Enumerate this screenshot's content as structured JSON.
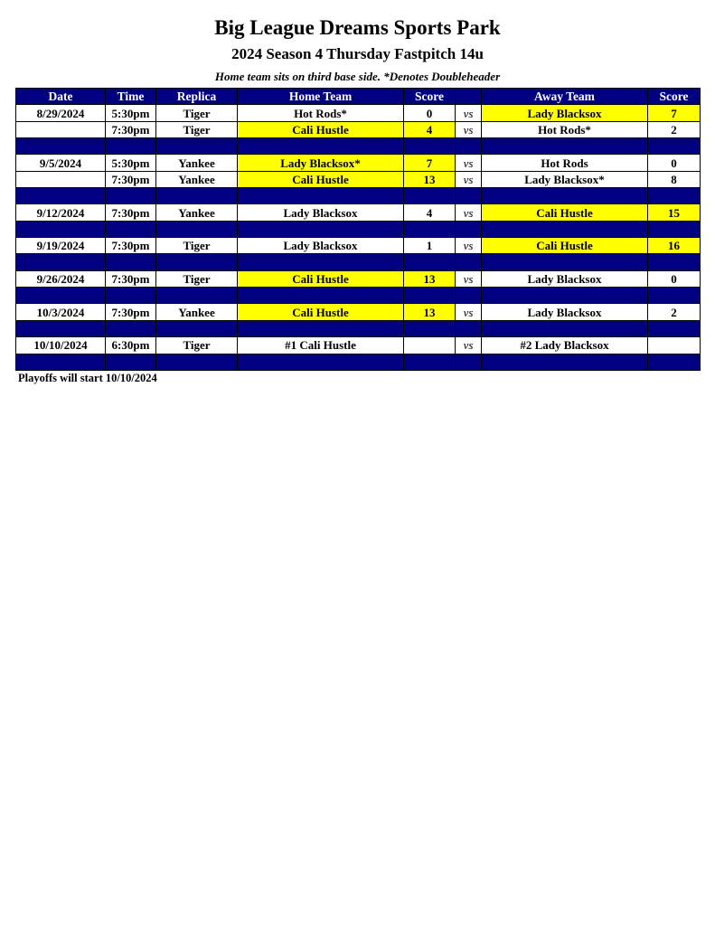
{
  "title": "Big League Dreams Sports Park",
  "subtitle": "2024 Season 4 Thursday Fastpitch 14u",
  "note": "Home team sits on third base side.  *Denotes Doubleheader",
  "colors": {
    "header_bg": "#000080",
    "winner_highlight": "#ffff00"
  },
  "headers": [
    "Date",
    "Time",
    "Replica",
    "Home Team",
    "Score",
    "",
    "Away Team",
    "Score"
  ],
  "rows": [
    {
      "date": "8/29/2024",
      "time": "5:30pm",
      "replica": "Tiger",
      "home": "Hot Rods*",
      "home_score": "0",
      "vs": "vs",
      "away": "Lady Blacksox",
      "away_score": "7",
      "winner": "away"
    },
    {
      "date": "",
      "time": "7:30pm",
      "replica": "Tiger",
      "home": "Cali Hustle",
      "home_score": "4",
      "vs": "vs",
      "away": "Hot Rods*",
      "away_score": "2",
      "winner": "home"
    },
    {
      "separator": true
    },
    {
      "date": "9/5/2024",
      "time": "5:30pm",
      "replica": "Yankee",
      "home": "Lady Blacksox*",
      "home_score": "7",
      "vs": "vs",
      "away": "Hot Rods",
      "away_score": "0",
      "winner": "home"
    },
    {
      "date": "",
      "time": "7:30pm",
      "replica": "Yankee",
      "home": "Cali Hustle",
      "home_score": "13",
      "vs": "vs",
      "away": "Lady Blacksox*",
      "away_score": "8",
      "winner": "home"
    },
    {
      "separator": true
    },
    {
      "date": "9/12/2024",
      "time": "7:30pm",
      "replica": "Yankee",
      "home": "Lady Blacksox",
      "home_score": "4",
      "vs": "vs",
      "away": "Cali Hustle",
      "away_score": "15",
      "winner": "away"
    },
    {
      "separator": true
    },
    {
      "date": "9/19/2024",
      "time": "7:30pm",
      "replica": "Tiger",
      "home": "Lady Blacksox",
      "home_score": "1",
      "vs": "vs",
      "away": "Cali Hustle",
      "away_score": "16",
      "winner": "away"
    },
    {
      "separator": true
    },
    {
      "date": "9/26/2024",
      "time": "7:30pm",
      "replica": "Tiger",
      "home": "Cali Hustle",
      "home_score": "13",
      "vs": "vs",
      "away": "Lady Blacksox",
      "away_score": "0",
      "winner": "home"
    },
    {
      "separator": true
    },
    {
      "date": "10/3/2024",
      "time": "7:30pm",
      "replica": "Yankee",
      "home": "Cali Hustle",
      "home_score": "13",
      "vs": "vs",
      "away": "Lady Blacksox",
      "away_score": "2",
      "winner": "home"
    },
    {
      "separator": true
    },
    {
      "date": "10/10/2024",
      "time": "6:30pm",
      "replica": "Tiger",
      "home": "#1 Cali Hustle",
      "home_score": "",
      "vs": "vs",
      "away": "#2 Lady Blacksox",
      "away_score": "",
      "winner": ""
    },
    {
      "separator": true
    }
  ],
  "footer": "Playoffs will start 10/10/2024"
}
